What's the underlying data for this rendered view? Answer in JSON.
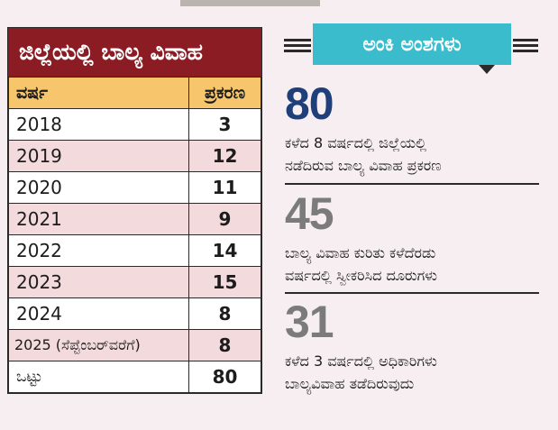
{
  "table": {
    "title": "ಜಿಲ್ಲೆಯಲ್ಲಿ ಬಾಲ್ಯ ವಿವಾಹ",
    "header": {
      "year": "ವರ್ಷ",
      "cases": "ಪ್ರಕರಣ"
    },
    "rows": [
      {
        "year": "2018",
        "cases": "3"
      },
      {
        "year": "2019",
        "cases": "12"
      },
      {
        "year": "2020",
        "cases": "11"
      },
      {
        "year": "2021",
        "cases": "9"
      },
      {
        "year": "2022",
        "cases": "14"
      },
      {
        "year": "2023",
        "cases": "15"
      },
      {
        "year": "2024",
        "cases": "8"
      },
      {
        "year": "2025 (ಸೆಪ್ಟೆಂಬರ್‌ವರೆಗೆ)",
        "cases": "8"
      }
    ],
    "total": {
      "label": "ಒಟ್ಟು",
      "cases": "80"
    }
  },
  "stats": {
    "badge": "ಅಂಕಿ ಅಂಶಗಳು",
    "items": [
      {
        "value": "80",
        "line1": "ಕಳೆದ 8 ವರ್ಷದಲ್ಲಿ ಜಿಲ್ಲೆಯಲ್ಲಿ",
        "line2": "ನಡೆದಿರುವ ಬಾಲ್ಯ ವಿವಾಹ ಪ್ರಕರಣ"
      },
      {
        "value": "45",
        "line1": "ಬಾಲ್ಯ ವಿವಾಹ ಕುರಿತು ಕಳೆದೆರಡು",
        "line2": "ವರ್ಷದಲ್ಲಿ ಸ್ವೀಕರಿಸಿದ ದೂರುಗಳು"
      },
      {
        "value": "31",
        "line1": "ಕಳೆದ 3 ವರ್ಷದಲ್ಲಿ ಅಧಿಕಾರಿಗಳು",
        "line2": "ಬಾಲ್ಯವಿವಾಹ ತಡೆದಿರುವುದು"
      }
    ]
  },
  "colors": {
    "title_bg": "#8b1c24",
    "header_bg": "#f7c66c",
    "alt_row_bg": "#f3dadd",
    "badge_bg": "#3bbccd",
    "stat_80": "#1f3f7a",
    "stat_45": "#7b7b7b",
    "stat_31": "#7b7b7b"
  }
}
